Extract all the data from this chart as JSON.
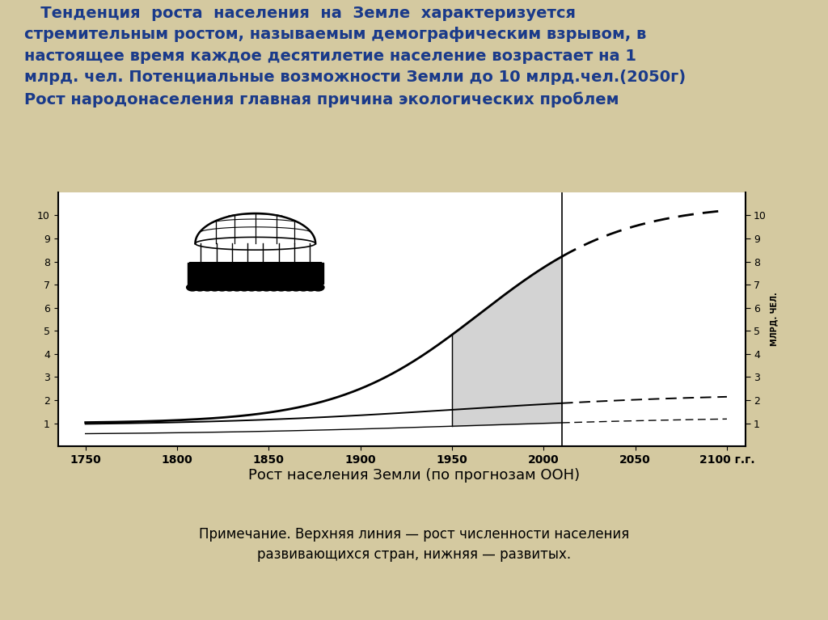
{
  "background_color": "#d4c9a0",
  "title_text1": "   Тенденция  роста  населения  на  Земле  характеризуется",
  "title_text2": "стремительным ростом, называемым демографическим взрывом, в",
  "title_text3": "настоящее время каждое десятилетие население возрастает на 1",
  "title_text4": "млрд. чел. Потенциальные возможности Земли до 10 млрд.чел.(2050г)",
  "title_text5": "Рост народонаселения главная причина экологических проблем",
  "caption_title": "Рост населения Земли (по прогнозам ООН)",
  "caption_note1": "Примечание. Верхняя линия — рост численности населения",
  "caption_note2": "развивающихся стран, нижняя — развитых.",
  "ylabel": "МЛРД. ЧЕЛ.",
  "x_ticks": [
    1750,
    1800,
    1850,
    1900,
    1950,
    2000,
    2050,
    2100
  ],
  "x_tick_labels": [
    "1750",
    "1800",
    "1850",
    "1900",
    "1950",
    "2000",
    "2050",
    "2100 г.г."
  ],
  "y_ticks": [
    1,
    2,
    3,
    4,
    5,
    6,
    7,
    8,
    9,
    10
  ],
  "ylim": [
    0,
    11
  ],
  "xlim": [
    1735,
    2110
  ]
}
